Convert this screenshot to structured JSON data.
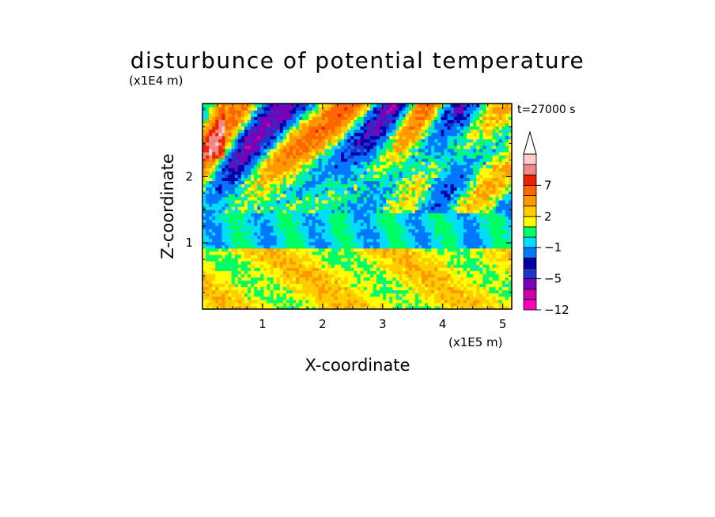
{
  "chart_data": {
    "type": "heatmap",
    "title": "disturbunce of potential temperature",
    "xlabel": "X-coordinate",
    "ylabel": "Z-coordinate",
    "x_unit": "(x1E5 m)",
    "y_unit": "(x1E4 m)",
    "time_label": "t=27000 s",
    "xlim": [
      0,
      5.15
    ],
    "ylim": [
      0,
      3.1
    ],
    "x_ticks": [
      "1",
      "2",
      "3",
      "4",
      "5"
    ],
    "x_tick_values": [
      1,
      2,
      3,
      4,
      5
    ],
    "y_ticks": [
      "1",
      "2"
    ],
    "y_tick_values": [
      1,
      2
    ],
    "colorbar": {
      "labels": [
        "-12",
        "-5",
        "-1",
        "2",
        "7"
      ],
      "label_levels": [
        -12,
        -5,
        -1,
        2,
        7
      ],
      "levels": [
        -12,
        -9,
        -7,
        -5,
        -4,
        -3,
        -1,
        0,
        1,
        2,
        3,
        5,
        7,
        9,
        11
      ],
      "colors": [
        "#ff00bb",
        "#cc00aa",
        "#7a00b8",
        "#2233cc",
        "#0000aa",
        "#0077ff",
        "#00ddff",
        "#00ff66",
        "#ffff00",
        "#ffcc00",
        "#ff9900",
        "#ff6600",
        "#ee2200",
        "#f08888",
        "#ffcccc"
      ],
      "extend_top": true
    },
    "field_regions": [
      {
        "z_range": [
          0,
          0.9
        ],
        "dominant_values": [
          1,
          2,
          3
        ],
        "description_colors": [
          "#ffff00",
          "#ffcc00",
          "#ff9900"
        ]
      },
      {
        "z_range": [
          0.9,
          1.5
        ],
        "dominant_values": [
          -1,
          0
        ],
        "description_colors": [
          "#00ff66",
          "#00ddff"
        ]
      },
      {
        "z_range": [
          1.5,
          3.1
        ],
        "dominant_values": [
          -5,
          -3,
          0,
          3,
          7
        ],
        "description_colors": [
          "#2233cc",
          "#0000aa",
          "#00ddff",
          "#ff9900",
          "#ee2200"
        ]
      }
    ]
  }
}
